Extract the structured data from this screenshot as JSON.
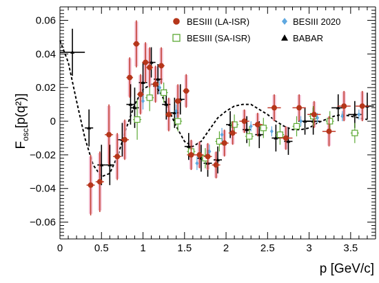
{
  "chart_data": {
    "type": "scatter",
    "xlabel": "p [GeV/c]",
    "ylabel": "F",
    "ylabel_sub": "osc",
    "ylabel_tail": "[p(q²)]",
    "xlim": [
      0,
      3.8
    ],
    "ylim": [
      -0.07,
      0.068
    ],
    "xticks": [
      0,
      0.5,
      1,
      1.5,
      2,
      2.5,
      3,
      3.5
    ],
    "xtick_labels": [
      "0",
      "0.5",
      "1",
      "1.5",
      "2",
      "2.5",
      "3",
      "3.5"
    ],
    "yticks": [
      -0.06,
      -0.04,
      -0.02,
      0,
      0.02,
      0.04,
      0.06
    ],
    "ytick_labels": [
      "−0.06",
      "−0.04",
      "−0.02",
      "0",
      "0.02",
      "0.04",
      "0.06"
    ],
    "grid": false,
    "legend_position": "top-right",
    "legend": [
      {
        "label": "BESIII (LA-ISR)",
        "series": "besiii_la"
      },
      {
        "label": "BESIII 2020",
        "series": "besiii_2020"
      },
      {
        "label": "BESIII (SA-ISR)",
        "series": "besiii_sa"
      },
      {
        "label": "BABAR",
        "series": "babar"
      }
    ],
    "colors": {
      "besiii_la_marker": "#b5361a",
      "besiii_la_error": "#c0392b",
      "besiii_la_band": "#f2b8cf",
      "besiii_sa": "#5aa832",
      "besiii_2020": "#5fa8e0",
      "babar": "#000000",
      "fit": "#000000"
    },
    "series": {
      "besiii_la": [
        {
          "x": 0.37,
          "y": -0.038,
          "xerr": 0.05,
          "yerr": 0.018
        },
        {
          "x": 0.48,
          "y": -0.036,
          "xerr": 0.05,
          "yerr": 0.018
        },
        {
          "x": 0.59,
          "y": -0.008,
          "xerr": 0.05,
          "yerr": 0.018
        },
        {
          "x": 0.69,
          "y": -0.021,
          "xerr": 0.05,
          "yerr": 0.014
        },
        {
          "x": 0.78,
          "y": -0.011,
          "xerr": 0.05,
          "yerr": 0.012
        },
        {
          "x": 0.84,
          "y": 0.026,
          "xerr": 0.04,
          "yerr": 0.012
        },
        {
          "x": 0.92,
          "y": 0.046,
          "xerr": 0.04,
          "yerr": 0.014
        },
        {
          "x": 0.97,
          "y": 0.016,
          "xerr": 0.04,
          "yerr": 0.012
        },
        {
          "x": 1.03,
          "y": 0.035,
          "xerr": 0.04,
          "yerr": 0.012
        },
        {
          "x": 1.08,
          "y": 0.032,
          "xerr": 0.04,
          "yerr": 0.012
        },
        {
          "x": 1.15,
          "y": 0.022,
          "xerr": 0.04,
          "yerr": 0.011
        },
        {
          "x": 1.22,
          "y": 0.033,
          "xerr": 0.04,
          "yerr": 0.011
        },
        {
          "x": 1.31,
          "y": 0.004,
          "xerr": 0.04,
          "yerr": 0.01
        },
        {
          "x": 1.42,
          "y": 0.012,
          "xerr": 0.04,
          "yerr": 0.01
        },
        {
          "x": 1.52,
          "y": 0.018,
          "xerr": 0.04,
          "yerr": 0.01
        },
        {
          "x": 1.58,
          "y": -0.02,
          "xerr": 0.05,
          "yerr": 0.009
        },
        {
          "x": 1.68,
          "y": -0.02,
          "xerr": 0.05,
          "yerr": 0.008
        },
        {
          "x": 1.78,
          "y": -0.021,
          "xerr": 0.05,
          "yerr": 0.008
        },
        {
          "x": 1.88,
          "y": -0.026,
          "xerr": 0.05,
          "yerr": 0.008
        },
        {
          "x": 1.98,
          "y": -0.013,
          "xerr": 0.05,
          "yerr": 0.008
        },
        {
          "x": 2.08,
          "y": -0.007,
          "xerr": 0.05,
          "yerr": 0.007
        },
        {
          "x": 2.22,
          "y": 0.0,
          "xerr": 0.06,
          "yerr": 0.007
        },
        {
          "x": 2.38,
          "y": -0.002,
          "xerr": 0.06,
          "yerr": 0.007
        },
        {
          "x": 2.58,
          "y": 0.008,
          "xerr": 0.08,
          "yerr": 0.008
        },
        {
          "x": 2.72,
          "y": -0.01,
          "xerr": 0.08,
          "yerr": 0.007
        },
        {
          "x": 2.88,
          "y": 0.008,
          "xerr": 0.08,
          "yerr": 0.008
        },
        {
          "x": 3.06,
          "y": 0.004,
          "xerr": 0.08,
          "yerr": 0.008
        },
        {
          "x": 3.24,
          "y": -0.006,
          "xerr": 0.08,
          "yerr": 0.009
        },
        {
          "x": 3.42,
          "y": 0.009,
          "xerr": 0.08,
          "yerr": 0.009
        },
        {
          "x": 3.64,
          "y": 0.009,
          "xerr": 0.08,
          "yerr": 0.009
        }
      ],
      "besiii_sa": [
        {
          "x": 0.93,
          "y": 0.001,
          "xerr": 0.05,
          "yerr": 0.012
        },
        {
          "x": 1.08,
          "y": 0.014,
          "xerr": 0.05,
          "yerr": 0.008
        },
        {
          "x": 1.25,
          "y": 0.017,
          "xerr": 0.05,
          "yerr": 0.006
        },
        {
          "x": 1.42,
          "y": 0.0,
          "xerr": 0.05,
          "yerr": 0.006
        },
        {
          "x": 1.58,
          "y": -0.018,
          "xerr": 0.05,
          "yerr": 0.006
        },
        {
          "x": 1.75,
          "y": -0.022,
          "xerr": 0.05,
          "yerr": 0.006
        },
        {
          "x": 1.92,
          "y": -0.012,
          "xerr": 0.05,
          "yerr": 0.006
        },
        {
          "x": 2.1,
          "y": -0.002,
          "xerr": 0.05,
          "yerr": 0.006
        },
        {
          "x": 2.28,
          "y": -0.009,
          "xerr": 0.05,
          "yerr": 0.006
        },
        {
          "x": 2.45,
          "y": -0.004,
          "xerr": 0.05,
          "yerr": 0.006
        },
        {
          "x": 2.65,
          "y": -0.008,
          "xerr": 0.05,
          "yerr": 0.006
        },
        {
          "x": 2.85,
          "y": -0.003,
          "xerr": 0.05,
          "yerr": 0.006
        },
        {
          "x": 3.05,
          "y": 0.003,
          "xerr": 0.05,
          "yerr": 0.006
        },
        {
          "x": 3.25,
          "y": 0.0,
          "xerr": 0.05,
          "yerr": 0.006
        },
        {
          "x": 3.55,
          "y": -0.007,
          "xerr": 0.05,
          "yerr": 0.006
        }
      ],
      "besiii_2020": [
        {
          "x": 1.0,
          "y": 0.012,
          "yerr": 0.005
        },
        {
          "x": 1.2,
          "y": 0.02,
          "yerr": 0.004
        },
        {
          "x": 1.4,
          "y": 0.006,
          "yerr": 0.004
        },
        {
          "x": 1.65,
          "y": -0.025,
          "yerr": 0.004
        },
        {
          "x": 1.8,
          "y": -0.018,
          "yerr": 0.004
        },
        {
          "x": 1.95,
          "y": -0.008,
          "yerr": 0.004
        },
        {
          "x": 2.3,
          "y": -0.003,
          "yerr": 0.003
        },
        {
          "x": 2.55,
          "y": -0.006,
          "yerr": 0.003
        },
        {
          "x": 2.9,
          "y": 0.0,
          "yerr": 0.003
        },
        {
          "x": 3.1,
          "y": 0.002,
          "yerr": 0.003
        },
        {
          "x": 3.4,
          "y": 0.003,
          "yerr": 0.003
        },
        {
          "x": 3.6,
          "y": 0.004,
          "yerr": 0.003
        }
      ],
      "babar": [
        {
          "x": 0.15,
          "y": 0.041,
          "xerr": 0.15,
          "yerr": 0.014
        },
        {
          "x": 0.35,
          "y": -0.004,
          "xerr": 0.05,
          "yerr": 0.011
        },
        {
          "x": 0.5,
          "y": -0.026,
          "xerr": 0.05,
          "yerr": 0.012
        },
        {
          "x": 0.6,
          "y": -0.026,
          "xerr": 0.05,
          "yerr": 0.012
        },
        {
          "x": 0.75,
          "y": -0.011,
          "xerr": 0.05,
          "yerr": 0.01
        },
        {
          "x": 0.85,
          "y": 0.01,
          "xerr": 0.05,
          "yerr": 0.012
        },
        {
          "x": 0.9,
          "y": 0.008,
          "xerr": 0.05,
          "yerr": 0.012
        },
        {
          "x": 1.0,
          "y": 0.023,
          "xerr": 0.05,
          "yerr": 0.012
        },
        {
          "x": 1.1,
          "y": 0.035,
          "xerr": 0.05,
          "yerr": 0.009
        },
        {
          "x": 1.18,
          "y": 0.025,
          "xerr": 0.05,
          "yerr": 0.009
        },
        {
          "x": 1.28,
          "y": 0.01,
          "xerr": 0.05,
          "yerr": 0.009
        },
        {
          "x": 1.38,
          "y": 0.005,
          "xerr": 0.05,
          "yerr": 0.009
        },
        {
          "x": 1.45,
          "y": 0.013,
          "xerr": 0.05,
          "yerr": 0.009
        },
        {
          "x": 1.55,
          "y": -0.015,
          "xerr": 0.05,
          "yerr": 0.008
        },
        {
          "x": 1.7,
          "y": -0.022,
          "xerr": 0.05,
          "yerr": 0.008
        },
        {
          "x": 1.78,
          "y": -0.025,
          "xerr": 0.05,
          "yerr": 0.008
        },
        {
          "x": 1.9,
          "y": -0.023,
          "xerr": 0.05,
          "yerr": 0.008
        },
        {
          "x": 2.05,
          "y": -0.002,
          "xerr": 0.05,
          "yerr": 0.008
        },
        {
          "x": 2.25,
          "y": -0.005,
          "xerr": 0.05,
          "yerr": 0.008
        },
        {
          "x": 2.4,
          "y": -0.008,
          "xerr": 0.05,
          "yerr": 0.008
        },
        {
          "x": 2.6,
          "y": -0.01,
          "xerr": 0.05,
          "yerr": 0.008
        },
        {
          "x": 2.75,
          "y": -0.012,
          "xerr": 0.05,
          "yerr": 0.008
        },
        {
          "x": 2.95,
          "y": 0.0,
          "xerr": 0.08,
          "yerr": 0.008
        },
        {
          "x": 3.05,
          "y": 0.0,
          "xerr": 0.08,
          "yerr": 0.008
        },
        {
          "x": 3.35,
          "y": 0.008,
          "xerr": 0.08,
          "yerr": 0.008
        },
        {
          "x": 3.55,
          "y": 0.004,
          "xerr": 0.08,
          "yerr": 0.008
        },
        {
          "x": 3.7,
          "y": 0.009,
          "xerr": 0.08,
          "yerr": 0.008
        }
      ],
      "fit": {
        "x": [
          0,
          0.1,
          0.2,
          0.3,
          0.4,
          0.5,
          0.6,
          0.7,
          0.8,
          0.9,
          1.0,
          1.1,
          1.2,
          1.3,
          1.4,
          1.5,
          1.6,
          1.7,
          1.8,
          1.9,
          2.0,
          2.1,
          2.2,
          2.3,
          2.4,
          2.5,
          2.6,
          2.7,
          2.8,
          2.9,
          3.0,
          3.1,
          3.2,
          3.3,
          3.4,
          3.5,
          3.6,
          3.7
        ],
        "y": [
          0.048,
          0.035,
          0.012,
          -0.01,
          -0.026,
          -0.033,
          -0.031,
          -0.02,
          -0.004,
          0.01,
          0.019,
          0.022,
          0.018,
          0.008,
          -0.003,
          -0.012,
          -0.015,
          -0.012,
          -0.005,
          0.002,
          0.006,
          0.009,
          0.01,
          0.01,
          0.007,
          0.004,
          0.0,
          -0.003,
          -0.005,
          -0.005,
          -0.004,
          -0.001,
          0.001,
          0.003,
          0.004,
          0.003,
          0.002,
          0.001
        ]
      }
    }
  }
}
